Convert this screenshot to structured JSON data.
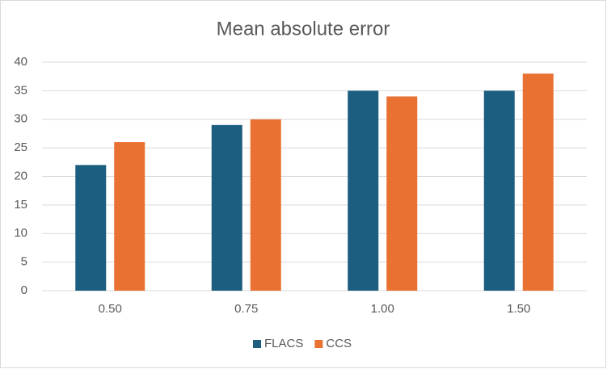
{
  "chart_data": {
    "type": "bar",
    "title": "Mean absolute error",
    "categories": [
      "0.50",
      "0.75",
      "1.00",
      "1.50"
    ],
    "series": [
      {
        "name": "FLACS",
        "color": "#1b5e80",
        "values": [
          22,
          29,
          35,
          35
        ]
      },
      {
        "name": "CCS",
        "color": "#e97132",
        "values": [
          26,
          30,
          34,
          38
        ]
      }
    ],
    "ylim": [
      0,
      40
    ],
    "yticks": [
      0,
      5,
      10,
      15,
      20,
      25,
      30,
      35,
      40
    ],
    "grid": true,
    "legend": "bottom"
  }
}
